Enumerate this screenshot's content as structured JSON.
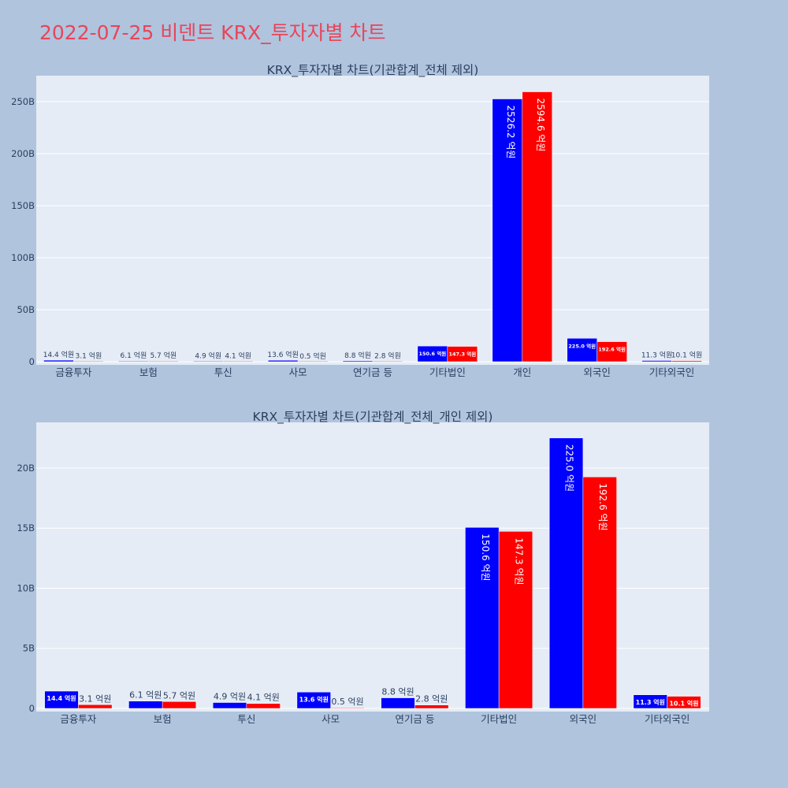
{
  "page_title": "2022-07-25 비덴트 KRX_투자자별 차트",
  "colors": {
    "background": "#b0c4de",
    "plot_bg": "#e5ecf6",
    "title": "#e8455a",
    "series_a": "#0000ff",
    "series_b": "#ff0000",
    "text": "#2a3f5f"
  },
  "chart_data": [
    {
      "type": "bar",
      "title": "KRX_투자자별 차트(기관합계_전체 제외)",
      "categories": [
        "금융투자",
        "보험",
        "투신",
        "사모",
        "연기금 등",
        "기타법인",
        "개인",
        "외국인",
        "기타외국인"
      ],
      "series": [
        {
          "color": "#0000ff",
          "values": [
            1440000000,
            610000000,
            490000000,
            1360000000,
            880000000,
            15060000000,
            252620000000,
            22500000000,
            1130000000
          ],
          "labels": [
            "14.4 억원",
            "6.1 억원",
            "4.9 억원",
            "13.6 억원",
            "8.8 억원",
            "150.6 억원",
            "2526.2 억원",
            "225.0 억원",
            "11.3 억원"
          ]
        },
        {
          "color": "#ff0000",
          "values": [
            310000000,
            570000000,
            410000000,
            50000000,
            280000000,
            14730000000,
            259460000000,
            19260000000,
            1010000000
          ],
          "labels": [
            "3.1 억원",
            "5.7 억원",
            "4.1 억원",
            "0.5 억원",
            "2.8 억원",
            "147.3 억원",
            "2594.6 억원",
            "192.6 억원",
            "10.1 억원"
          ]
        }
      ],
      "yticks": [
        "0",
        "50B",
        "100B",
        "150B",
        "200B",
        "250B"
      ],
      "ylim": [
        0,
        275000000000
      ],
      "grid": true
    },
    {
      "type": "bar",
      "title": "KRX_투자자별 차트(기관합계_전체_개인 제외)",
      "categories": [
        "금융투자",
        "보험",
        "투신",
        "사모",
        "연기금 등",
        "기타법인",
        "외국인",
        "기타외국인"
      ],
      "series": [
        {
          "color": "#0000ff",
          "values": [
            1440000000,
            610000000,
            490000000,
            1360000000,
            880000000,
            15060000000,
            22500000000,
            1130000000
          ],
          "labels": [
            "14.4 억원",
            "6.1 억원",
            "4.9 억원",
            "13.6 억원",
            "8.8 억원",
            "150.6 억원",
            "225.0 억원",
            "11.3 억원"
          ]
        },
        {
          "color": "#ff0000",
          "values": [
            310000000,
            570000000,
            410000000,
            50000000,
            280000000,
            14730000000,
            19260000000,
            1010000000
          ],
          "labels": [
            "3.1 억원",
            "5.7 억원",
            "4.1 억원",
            "0.5 억원",
            "2.8 억원",
            "147.3 억원",
            "192.6 억원",
            "10.1 억원"
          ]
        }
      ],
      "yticks": [
        "0",
        "5B",
        "10B",
        "15B",
        "20B"
      ],
      "ylim": [
        0,
        23800000000
      ],
      "grid": true
    }
  ]
}
